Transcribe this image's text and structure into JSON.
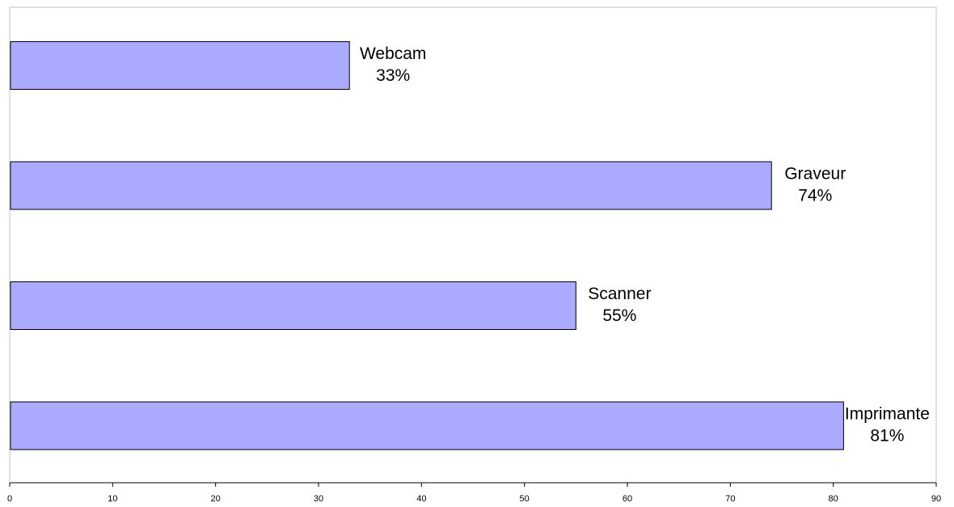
{
  "chart_data": {
    "type": "bar",
    "orientation": "horizontal",
    "categories": [
      "Webcam",
      "Graveur",
      "Scanner",
      "Imprimante"
    ],
    "values": [
      33,
      74,
      55,
      81
    ],
    "value_labels": [
      "33%",
      "74%",
      "55%",
      "81%"
    ],
    "xlim": [
      0,
      90
    ],
    "xticks": [
      "0",
      "10",
      "20",
      "30",
      "40",
      "50",
      "60",
      "70",
      "80",
      "90"
    ],
    "title": "",
    "xlabel": "",
    "ylabel": "",
    "grid": false,
    "legend": "none",
    "colors": {
      "bar_fill": "#aaaaff",
      "bar_stroke": "#000000",
      "plot_border": "#c0c0c0",
      "axis": "#000000"
    }
  }
}
